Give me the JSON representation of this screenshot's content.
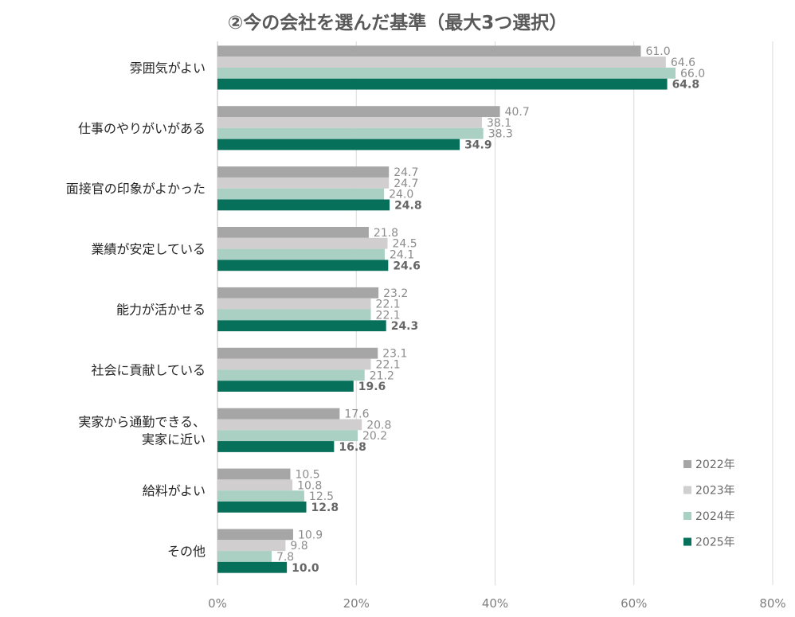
{
  "chart_data": {
    "type": "bar",
    "orientation": "horizontal",
    "title": "②今の会社を選んだ基準（最大3つ選択）",
    "categories": [
      [
        "雰囲気がよい"
      ],
      [
        "仕事のやりがいがある"
      ],
      [
        "面接官の印象がよかった"
      ],
      [
        "業績が安定している"
      ],
      [
        "能力が活かせる"
      ],
      [
        "社会に貢献している"
      ],
      [
        "実家から通勤できる、",
        "実家に近い"
      ],
      [
        "給料がよい"
      ],
      [
        "その他"
      ]
    ],
    "series": [
      {
        "name": "2022年",
        "color": "#a6a6a6",
        "values": [
          61.0,
          40.7,
          24.7,
          21.8,
          23.2,
          23.1,
          17.6,
          10.5,
          10.9
        ]
      },
      {
        "name": "2023年",
        "color": "#d0cece",
        "values": [
          64.6,
          38.1,
          24.7,
          24.5,
          22.1,
          22.1,
          20.8,
          10.8,
          9.8
        ]
      },
      {
        "name": "2024年",
        "color": "#a9d0c3",
        "values": [
          66.0,
          38.3,
          24.0,
          24.1,
          22.1,
          21.2,
          20.2,
          12.5,
          7.8
        ]
      },
      {
        "name": "2025年",
        "color": "#07705a",
        "bold_labels": true,
        "values": [
          64.8,
          34.9,
          24.8,
          24.6,
          24.3,
          19.6,
          16.8,
          12.8,
          10.0
        ]
      }
    ],
    "x_ticks": [
      "0%",
      "20%",
      "40%",
      "60%",
      "80%"
    ],
    "xlim": [
      0,
      80
    ],
    "grid": true,
    "legend_position": "bottom-right"
  }
}
